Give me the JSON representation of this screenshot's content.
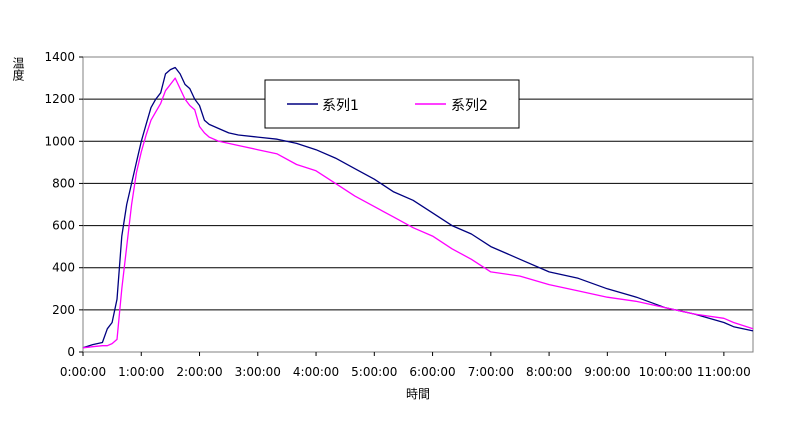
{
  "chart_data": {
    "type": "line",
    "xlabel": "時間",
    "ylabel": "温度",
    "ylim": [
      0,
      1400
    ],
    "yticks": [
      0,
      200,
      400,
      600,
      800,
      1000,
      1200,
      1400
    ],
    "xlim": [
      "0:00:00",
      "11:30:00"
    ],
    "xticks": [
      "0:00:00",
      "1:00:00",
      "2:00:00",
      "3:00:00",
      "4:00:00",
      "5:00:00",
      "6:00:00",
      "7:00:00",
      "8:00:00",
      "9:00:00",
      "10:00:00",
      "11:00:00"
    ],
    "grid": "horizontal",
    "legend_position": "top-center",
    "series": [
      {
        "name": "系列1",
        "color": "#000080",
        "x": [
          "0:00:00",
          "0:10:00",
          "0:20:00",
          "0:25:00",
          "0:30:00",
          "0:35:00",
          "0:40:00",
          "0:45:00",
          "0:50:00",
          "0:55:00",
          "1:00:00",
          "1:05:00",
          "1:10:00",
          "1:15:00",
          "1:20:00",
          "1:25:00",
          "1:30:00",
          "1:35:00",
          "1:40:00",
          "1:45:00",
          "1:50:00",
          "1:55:00",
          "2:00:00",
          "2:05:00",
          "2:10:00",
          "2:20:00",
          "2:30:00",
          "2:40:00",
          "3:00:00",
          "3:20:00",
          "3:40:00",
          "4:00:00",
          "4:20:00",
          "4:40:00",
          "5:00:00",
          "5:20:00",
          "5:40:00",
          "6:00:00",
          "6:20:00",
          "6:40:00",
          "7:00:00",
          "7:30:00",
          "8:00:00",
          "8:30:00",
          "9:00:00",
          "9:30:00",
          "10:00:00",
          "10:30:00",
          "11:00:00",
          "11:10:00",
          "11:30:00"
        ],
        "values": [
          20,
          35,
          45,
          110,
          140,
          250,
          550,
          700,
          800,
          900,
          1000,
          1080,
          1160,
          1200,
          1230,
          1320,
          1340,
          1350,
          1320,
          1270,
          1250,
          1200,
          1170,
          1100,
          1080,
          1060,
          1040,
          1030,
          1020,
          1010,
          990,
          960,
          920,
          870,
          820,
          760,
          720,
          660,
          600,
          560,
          500,
          440,
          380,
          350,
          300,
          260,
          210,
          180,
          140,
          120,
          100
        ]
      },
      {
        "name": "系列2",
        "color": "#ff00ff",
        "x": [
          "0:00:00",
          "0:10:00",
          "0:20:00",
          "0:25:00",
          "0:30:00",
          "0:35:00",
          "0:40:00",
          "0:45:00",
          "0:50:00",
          "0:55:00",
          "1:00:00",
          "1:05:00",
          "1:10:00",
          "1:15:00",
          "1:20:00",
          "1:25:00",
          "1:30:00",
          "1:35:00",
          "1:40:00",
          "1:45:00",
          "1:50:00",
          "1:55:00",
          "2:00:00",
          "2:05:00",
          "2:10:00",
          "2:20:00",
          "2:30:00",
          "2:40:00",
          "3:00:00",
          "3:20:00",
          "3:40:00",
          "4:00:00",
          "4:20:00",
          "4:40:00",
          "5:00:00",
          "5:20:00",
          "5:40:00",
          "6:00:00",
          "6:20:00",
          "6:40:00",
          "7:00:00",
          "7:30:00",
          "8:00:00",
          "8:30:00",
          "9:00:00",
          "9:30:00",
          "10:00:00",
          "10:30:00",
          "11:00:00",
          "11:10:00",
          "11:30:00"
        ],
        "values": [
          20,
          25,
          30,
          30,
          40,
          60,
          300,
          500,
          700,
          850,
          950,
          1030,
          1100,
          1140,
          1180,
          1240,
          1270,
          1300,
          1250,
          1200,
          1170,
          1150,
          1070,
          1040,
          1020,
          1000,
          990,
          980,
          960,
          940,
          890,
          860,
          800,
          740,
          690,
          640,
          590,
          550,
          490,
          440,
          380,
          360,
          320,
          290,
          260,
          240,
          210,
          180,
          160,
          140,
          110
        ]
      }
    ]
  }
}
